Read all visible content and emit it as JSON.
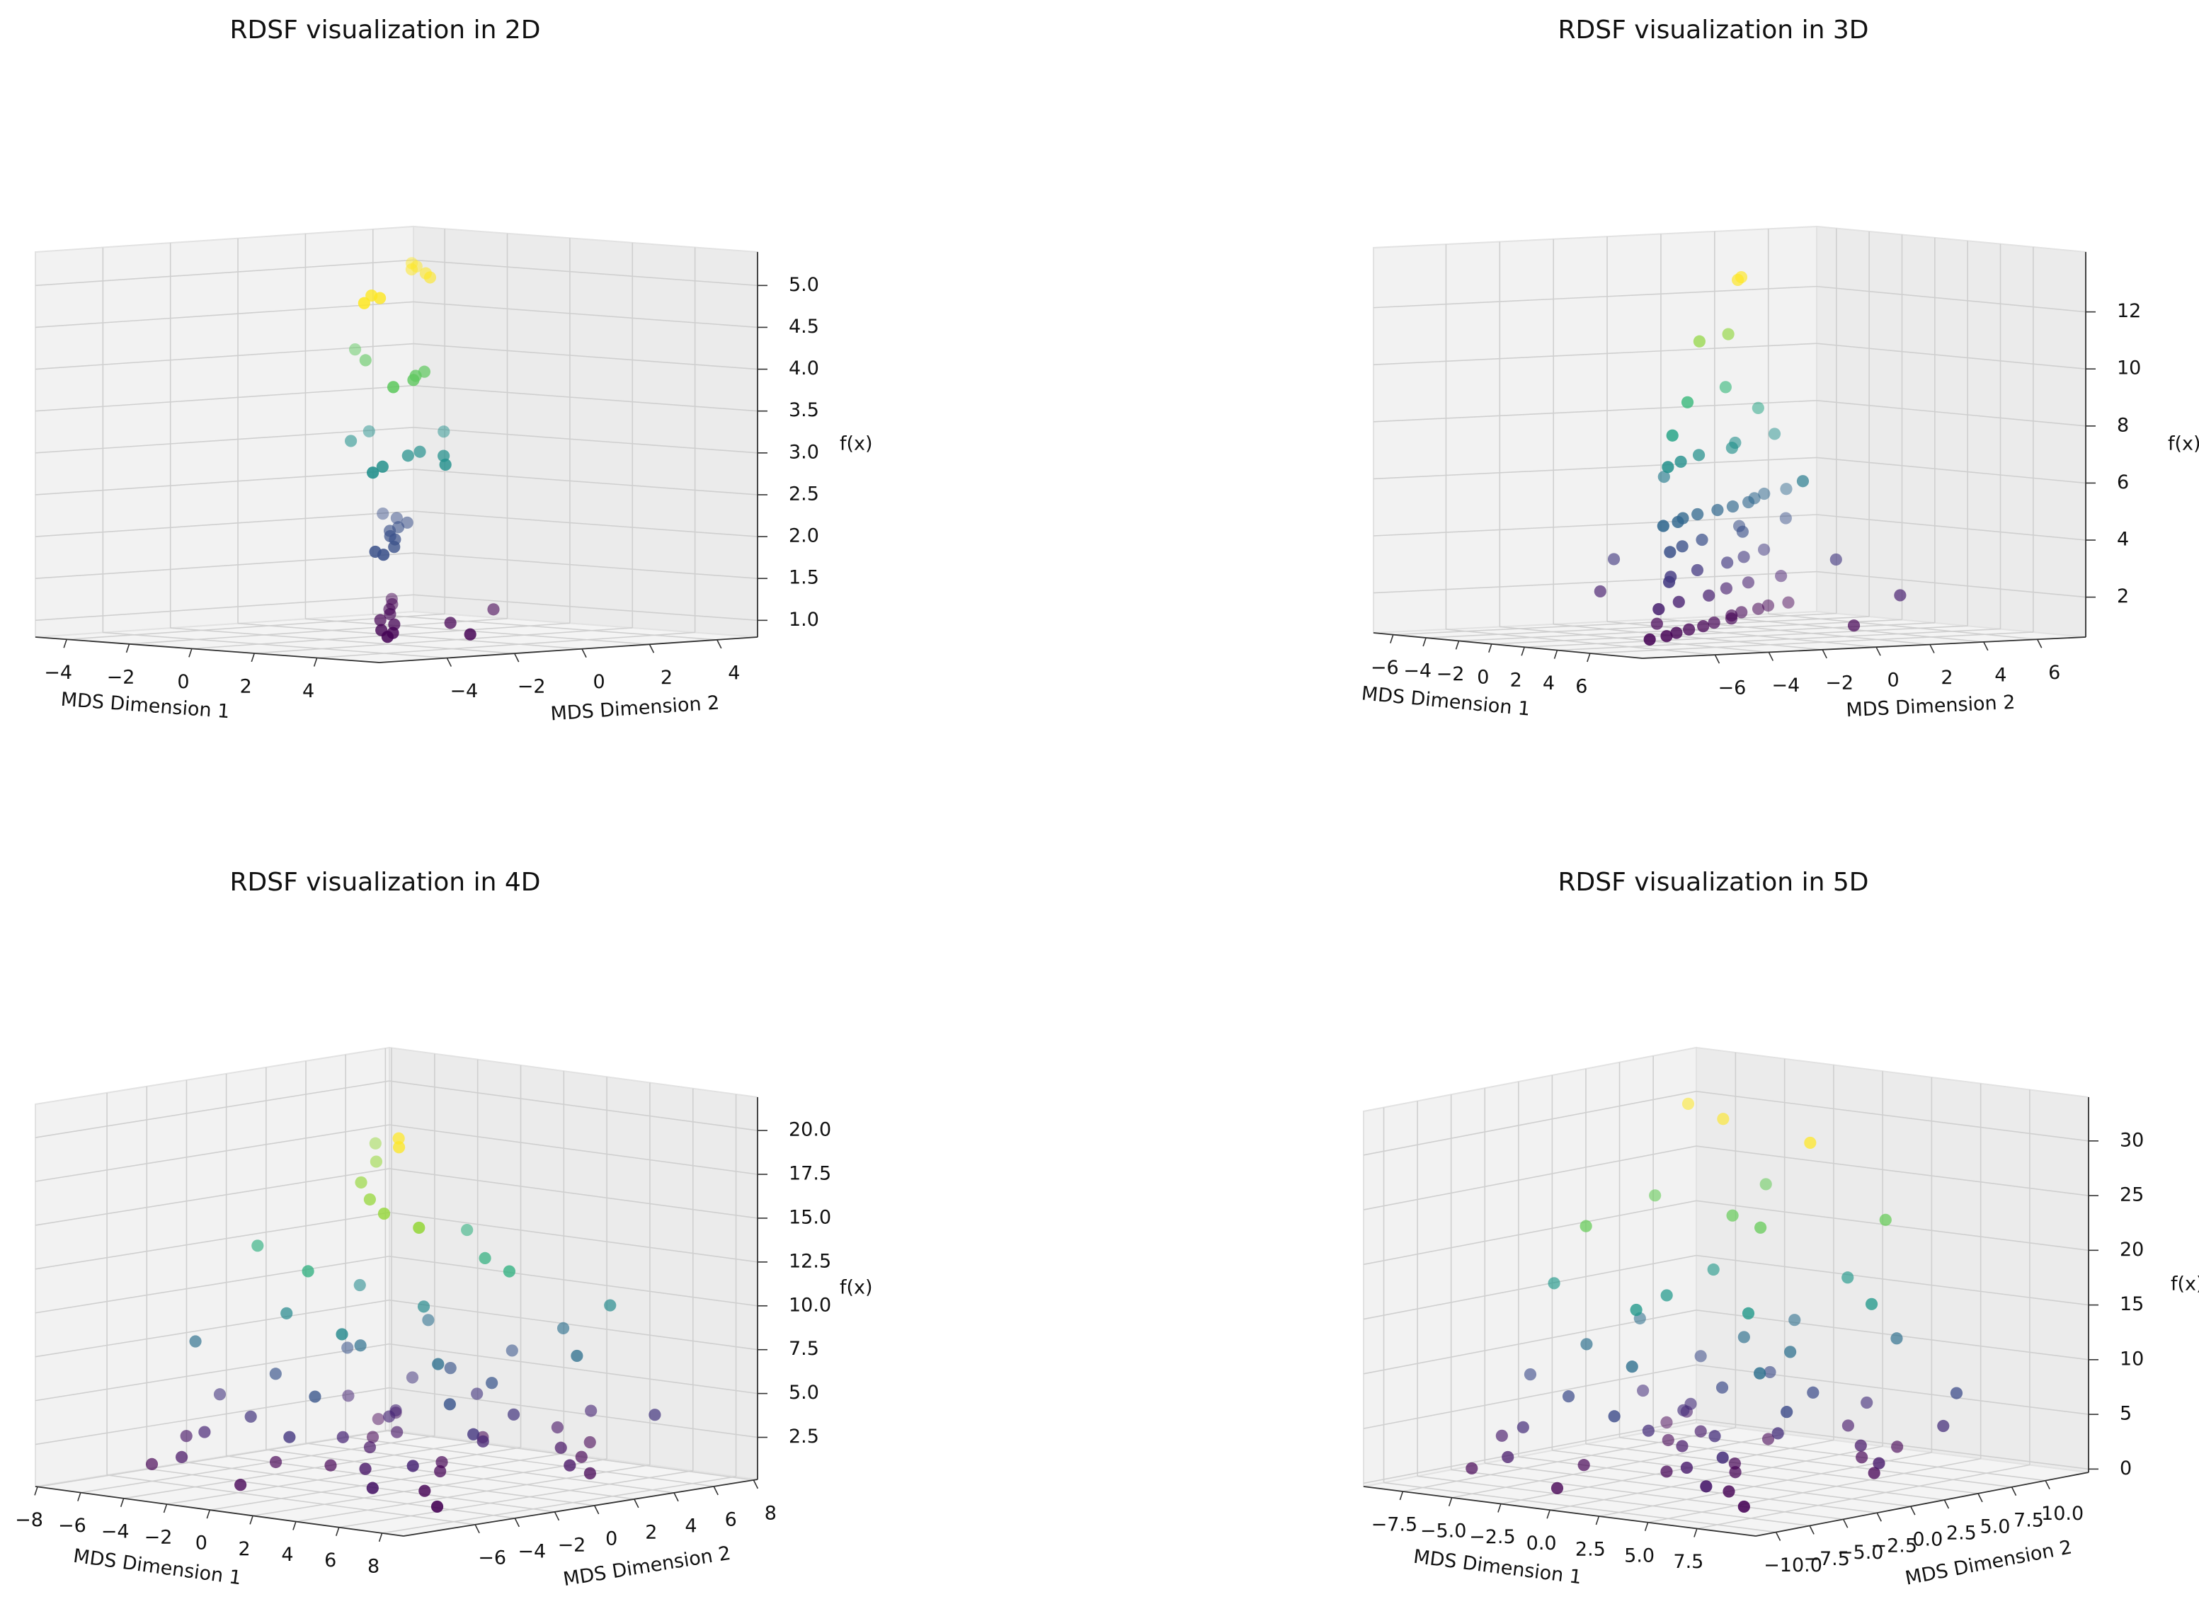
{
  "chart_data": [
    {
      "type": "scatter3d",
      "title": "RDSF visualization in 2D",
      "xlabel": "MDS Dimension 1",
      "ylabel": "MDS Dimension 2",
      "zlabel": "f(x)",
      "colormap": "viridis",
      "grid": true,
      "xlim": [
        -5,
        6
      ],
      "ylim": [
        -6,
        5.2
      ],
      "zlim": [
        0.8,
        5.4
      ],
      "xticks": [
        {
          "value": -4,
          "label": "−4"
        },
        {
          "value": -2,
          "label": "−2"
        },
        0,
        2,
        4
      ],
      "yticks": [
        {
          "value": -4,
          "label": "−4"
        },
        {
          "value": -2,
          "label": "−2"
        },
        0,
        2,
        4
      ],
      "zticks": [
        {
          "value": 1,
          "label": "1.0"
        },
        1.5,
        {
          "value": 2,
          "label": "2.0"
        },
        2.5,
        {
          "value": 3,
          "label": "3.0"
        },
        3.5,
        {
          "value": 4,
          "label": "4.0"
        },
        4.5,
        {
          "value": 5,
          "label": "5.0"
        }
      ],
      "x": [
        -4.3,
        -3.5,
        -2.9,
        -1.8,
        -0.8,
        2.4,
        3.1,
        4.0,
        -4.6,
        -2.0,
        1.5,
        2.3,
        3.2,
        4.5,
        -4.8,
        -2.9,
        0.6,
        1.3,
        1.9,
        3.4,
        -3.6,
        3.9,
        4.6,
        -4.9,
        -3.7,
        -1.6,
        -0.9,
        0.3,
        1.1,
        2.8,
        3.6,
        4.4,
        -2.5,
        -4.4,
        -3.2,
        -2.1,
        -1.0,
        0.2,
        1.4,
        2.5,
        3.3,
        4.1,
        -0.5,
        1.9,
        4.8
      ],
      "y": [
        4.5,
        3.9,
        3.2,
        2.6,
        1.8,
        -2.9,
        -3.3,
        -4.6,
        3.1,
        1.0,
        -0.5,
        -1.5,
        -2.4,
        -4.2,
        3.7,
        1.4,
        0.2,
        -0.8,
        -0.3,
        -3.5,
        4.8,
        -2.1,
        -4.9,
        4.2,
        3.5,
        1.6,
        0.7,
        -0.4,
        -1.0,
        -2.6,
        -3.9,
        -4.4,
        2.7,
        4.0,
        2.9,
        1.8,
        0.8,
        -0.6,
        -1.3,
        -2.7,
        -3.1,
        -4.0,
        3.4,
        -0.1,
        -2.2
      ],
      "z": [
        5,
        5,
        5,
        5,
        5,
        5,
        5,
        5,
        4,
        4,
        4,
        4,
        4,
        4,
        3,
        3,
        3,
        3,
        3,
        3,
        3,
        3,
        3,
        2,
        2,
        2,
        2,
        2,
        2,
        2,
        2,
        2,
        2,
        1,
        1,
        1,
        1,
        1,
        1,
        1,
        1,
        1,
        1,
        1,
        1
      ]
    },
    {
      "type": "scatter3d",
      "title": "RDSF visualization in 3D",
      "xlabel": "MDS Dimension 1",
      "ylabel": "MDS Dimension 2",
      "zlabel": "f(x)",
      "colormap": "viridis",
      "grid": true,
      "xlim": [
        -7.2,
        9.2
      ],
      "ylim": [
        -8.7,
        7.8
      ],
      "zlim": [
        0.6,
        14.1
      ],
      "xticks": [
        {
          "value": -6,
          "label": "−6"
        },
        {
          "value": -4,
          "label": "−4"
        },
        {
          "value": -2,
          "label": "−2"
        },
        0,
        2,
        4,
        6
      ],
      "yticks": [
        {
          "value": -6,
          "label": "−6"
        },
        {
          "value": -4,
          "label": "−4"
        },
        {
          "value": -2,
          "label": "−2"
        },
        0,
        2,
        4,
        6
      ],
      "zticks": [
        2,
        4,
        6,
        8,
        10,
        12
      ],
      "x": [
        -6.8,
        -5.9,
        -4.7,
        -3.6,
        -2.4,
        -1.1,
        0.3,
        1.6,
        2.7,
        3.9,
        5.1,
        6.2,
        -0.4,
        4.4,
        -6.1,
        -4.0,
        -1.9,
        0.8,
        2.9,
        5.6,
        -3.2,
        4.6,
        -5.5,
        -2.8,
        -0.7,
        1.9,
        4.2,
        6.4,
        -4.5,
        0.2,
        -6.3,
        -3.9,
        -1.4,
        1.2,
        3.6,
        5.8,
        -6.6,
        -5.0,
        -3.3,
        -1.7,
        -0.2,
        1.0,
        2.4,
        3.8,
        5.3,
        6.7,
        -2.1,
        2.6,
        -6.0,
        -3.0,
        -0.9,
        1.5,
        4.0,
        6.0,
        -5.2,
        4.8,
        -2.6,
        3.1,
        -0.8,
        1.7,
        -0.5,
        0.6
      ],
      "y": [
        6.5,
        5.2,
        4.1,
        2.8,
        1.7,
        0.9,
        -0.6,
        -1.8,
        -3.0,
        -4.2,
        -5.3,
        -6.6,
        -2.3,
        2.1,
        5.8,
        3.3,
        1.2,
        -1.1,
        -3.5,
        -5.9,
        -2.7,
        3.7,
        4.8,
        2.4,
        0.5,
        -2.2,
        -4.6,
        -6.0,
        -1.4,
        4.0,
        6.1,
        2.9,
        1.5,
        -1.6,
        -3.8,
        -5.6,
        6.3,
        4.5,
        3.1,
        1.9,
        0.4,
        -0.9,
        -2.5,
        -3.9,
        -5.0,
        -6.4,
        -1.0,
        1.3,
        5.5,
        2.2,
        0.8,
        -1.9,
        -4.1,
        -5.8,
        4.4,
        -4.9,
        1.6,
        -3.3,
        0.6,
        -2.0,
        0.9,
        0.1
      ],
      "z": [
        1,
        1,
        1,
        1,
        1,
        1,
        1,
        1,
        1,
        1,
        1,
        1,
        1,
        1,
        2,
        2,
        2,
        2,
        2,
        2,
        2,
        2,
        3,
        3,
        3,
        3,
        3,
        3,
        3,
        3,
        4,
        4,
        4,
        4,
        4,
        4,
        5,
        5,
        5,
        5,
        5,
        5,
        5,
        5,
        5,
        5,
        6,
        6,
        7,
        7,
        7,
        7,
        7,
        7,
        8,
        8,
        9,
        9,
        11,
        11,
        13,
        13
      ]
    },
    {
      "type": "scatter3d",
      "title": "RDSF visualization in 4D",
      "xlabel": "MDS Dimension 1",
      "ylabel": "MDS Dimension 2",
      "zlabel": "f(x)",
      "colormap": "viridis",
      "grid": true,
      "xlim": [
        -8.1,
        9
      ],
      "ylim": [
        -9.6,
        8.2
      ],
      "zlim": [
        0.1,
        21.9
      ],
      "xticks": [
        {
          "value": -8,
          "label": "−8"
        },
        {
          "value": -6,
          "label": "−6"
        },
        {
          "value": -4,
          "label": "−4"
        },
        {
          "value": -2,
          "label": "−2"
        },
        0,
        2,
        4,
        6,
        8
      ],
      "yticks": [
        {
          "value": -6,
          "label": "−6"
        },
        {
          "value": -4,
          "label": "−4"
        },
        {
          "value": -2,
          "label": "−2"
        },
        0,
        2,
        4,
        6,
        8
      ],
      "zticks": [
        2.5,
        {
          "value": 5,
          "label": "5.0"
        },
        7.5,
        {
          "value": 10,
          "label": "10.0"
        },
        12.5,
        {
          "value": 15,
          "label": "15.0"
        },
        17.5,
        {
          "value": 20,
          "label": "20.0"
        }
      ],
      "x": [
        -7.6,
        -6.2,
        -4.9,
        -3.4,
        -2.1,
        -0.7,
        0.8,
        2.2,
        3.5,
        4.9,
        6.3,
        7.7,
        -1.5,
        1.4,
        -7.0,
        -5.4,
        -3.8,
        -2.3,
        -0.6,
        1.0,
        2.7,
        4.3,
        5.9,
        7.3,
        -6.5,
        -4.4,
        -2.2,
        -0.1,
        2.0,
        4.1,
        6.2,
        -3.0,
        -7.2,
        -5.0,
        -2.9,
        -0.8,
        1.3,
        3.4,
        5.5,
        7.0,
        -5.8,
        -3.5,
        -1.2,
        1.1,
        3.4,
        5.7,
        0.0,
        -5.1,
        -2.6,
        -0.3,
        2.1,
        4.6,
        6.8,
        -4.3,
        -1.7,
        0.7,
        3.0,
        5.2,
        -4.8,
        -2.0,
        0.5,
        2.9,
        5.6,
        -6.9,
        -4.0,
        -1.1,
        1.8,
        4.4,
        7.5,
        1.2,
        2.6
      ],
      "y": [
        7.1,
        -5.8,
        3.9,
        -2.6,
        6.4,
        -7.3,
        1.2,
        -0.4,
        5.3,
        -4.1,
        2.7,
        -6.5,
        -1.9,
        8.0,
        -3.2,
        5.6,
        -6.9,
        2.3,
        -0.9,
        6.8,
        -4.7,
        3.4,
        -7.8,
        0.6,
        4.4,
        -5.1,
        1.8,
        -2.8,
        7.4,
        -0.3,
        -6.1,
        3.0,
        -1.3,
        6.0,
        -4.4,
        4.7,
        -7.0,
        2.0,
        -2.3,
        5.2,
        3.6,
        -2.5,
        6.9,
        -5.5,
        0.9,
        -3.7,
        2.5,
        -4.8,
        4.2,
        -1.7,
        5.9,
        -3.1,
        1.5,
        2.6,
        -3.9,
        0.4,
        -6.2,
        4.9,
        -2.0,
        5.5,
        -5.2,
        1.1,
        -0.6,
        6.2,
        3.1,
        -0.8,
        -3.5,
        -5.6,
        -7.2,
        -1.4,
        -2.9
      ],
      "z": [
        1,
        1,
        1,
        1,
        1,
        1,
        1,
        1,
        1,
        1,
        1,
        1,
        1,
        1,
        2,
        2,
        2,
        2,
        2,
        2,
        2,
        2,
        2,
        2,
        3,
        3,
        3,
        3,
        3,
        3,
        3,
        3,
        4,
        4,
        4,
        4,
        4,
        4,
        4,
        4,
        6,
        6,
        6,
        6,
        6,
        6,
        6,
        8,
        8,
        8,
        8,
        8,
        8,
        10,
        10,
        10,
        10,
        10,
        13,
        13,
        13,
        13,
        13,
        17,
        17,
        17,
        17,
        17,
        17,
        20,
        20
      ]
    },
    {
      "type": "scatter3d",
      "title": "RDSF visualization in 5D",
      "xlabel": "MDS Dimension 1",
      "ylabel": "MDS Dimension 2",
      "zlabel": "f(x)",
      "colormap": "viridis",
      "grid": true,
      "xlim": [
        -9.5,
        10.5
      ],
      "ylim": [
        -11.5,
        13.2
      ],
      "zlim": [
        -0.3,
        34
      ],
      "xticks": [
        {
          "value": -7.5,
          "label": "−7.5"
        },
        {
          "value": -5,
          "label": "−5.0"
        },
        {
          "value": -2.5,
          "label": "−2.5"
        },
        {
          "value": 0,
          "label": "0.0"
        },
        2.5,
        {
          "value": 5,
          "label": "5.0"
        },
        7.5
      ],
      "yticks": [
        {
          "value": -10,
          "label": "−10.0"
        },
        {
          "value": -7.5,
          "label": "−7.5"
        },
        {
          "value": -5,
          "label": "−5.0"
        },
        {
          "value": -2.5,
          "label": "−2.5"
        },
        {
          "value": 0,
          "label": "0.0"
        },
        2.5,
        {
          "value": 5,
          "label": "5.0"
        },
        7.5,
        {
          "value": 10,
          "label": "10.0"
        }
      ],
      "zticks": [
        0,
        5,
        10,
        15,
        20,
        25,
        30
      ],
      "x": [
        -8.2,
        -6.8,
        -5.3,
        -3.9,
        -2.4,
        -1.0,
        0.5,
        1.9,
        3.4,
        4.8,
        6.3,
        7.7,
        -0.3,
        2.8,
        -7.6,
        -5.8,
        -4.0,
        -2.2,
        -0.4,
        1.4,
        3.2,
        5.0,
        6.8,
        8.4,
        -7.0,
        -4.8,
        -2.6,
        -0.4,
        1.8,
        4.0,
        6.2,
        -3.4,
        2.5,
        7.9,
        -7.8,
        -5.5,
        -3.1,
        -0.8,
        1.5,
        3.8,
        6.1,
        8.3,
        0.2,
        -6.4,
        -3.9,
        -1.4,
        1.1,
        3.6,
        6.1,
        -0.2,
        4.7,
        -5.9,
        -3.2,
        -0.5,
        2.2,
        4.9,
        7.2,
        0.9,
        -4.6,
        -1.8,
        1.0,
        3.8,
        6.4,
        -3.0,
        -6.0,
        -2.5,
        4.0
      ],
      "y": [
        9.1,
        -7.4,
        5.0,
        -3.3,
        8.2,
        -9.5,
        1.5,
        -0.5,
        6.7,
        -5.2,
        3.4,
        -8.3,
        -2.4,
        10.2,
        -4.0,
        7.1,
        -8.8,
        2.9,
        -1.1,
        8.6,
        -6.0,
        4.3,
        -9.8,
        0.7,
        5.6,
        -6.5,
        2.2,
        -3.6,
        9.4,
        -0.4,
        -7.7,
        3.9,
        -2.9,
        6.2,
        -1.6,
        7.7,
        -5.6,
        6.0,
        -8.9,
        2.5,
        -2.8,
        6.6,
        1.0,
        4.5,
        -3.1,
        8.7,
        -7.0,
        1.1,
        -4.8,
        3.2,
        7.4,
        -2.6,
        5.3,
        -2.1,
        7.4,
        -3.9,
        1.9,
        -6.4,
        3.0,
        -6.2,
        0.6,
        -1.4,
        4.1,
        8.9,
        7.5,
        5.0,
        2.0
      ],
      "z": [
        1,
        1,
        1,
        1,
        1,
        1,
        1,
        1,
        1,
        1,
        1,
        1,
        1,
        1,
        3,
        3,
        3,
        3,
        3,
        3,
        3,
        3,
        3,
        3,
        5,
        5,
        5,
        5,
        5,
        5,
        5,
        5,
        5,
        5,
        8,
        8,
        8,
        8,
        8,
        8,
        8,
        8,
        8,
        12,
        12,
        12,
        12,
        12,
        12,
        12,
        12,
        17,
        17,
        17,
        17,
        17,
        17,
        17,
        24,
        24,
        24,
        24,
        24,
        24,
        31,
        31,
        31
      ]
    }
  ]
}
